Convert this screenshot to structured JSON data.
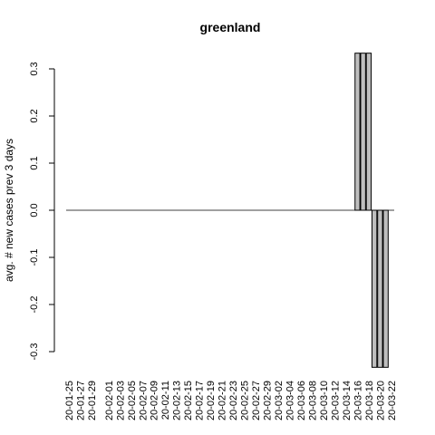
{
  "chart_data": {
    "type": "bar",
    "title": "greenland",
    "xlabel": "",
    "ylabel": "avg. # new cases prev  3  days",
    "ylim": [
      -0.3333,
      0.3333
    ],
    "yticks": [
      -0.3,
      -0.2,
      -0.1,
      0.0,
      0.1,
      0.2,
      0.3
    ],
    "ytick_labels": [
      "-0.3",
      "-0.2",
      "-0.1",
      "0.0",
      "0.1",
      "0.2",
      "0.3"
    ],
    "x_label_dates": [
      "20-01-25",
      "20-01-27",
      "20-01-29",
      "20-02-01",
      "20-02-03",
      "20-02-05",
      "20-02-07",
      "20-02-09",
      "20-02-11",
      "20-02-13",
      "20-02-15",
      "20-02-17",
      "20-02-19",
      "20-02-21",
      "20-02-23",
      "20-02-25",
      "20-02-27",
      "20-02-29",
      "20-03-02",
      "20-03-04",
      "20-03-06",
      "20-03-08",
      "20-03-10",
      "20-03-12",
      "20-03-14",
      "20-03-16",
      "20-03-18",
      "20-03-20",
      "20-03-22"
    ],
    "bars": [
      {
        "date": "20-03-16",
        "value": 0.3333
      },
      {
        "date": "20-03-17",
        "value": 0.3333
      },
      {
        "date": "20-03-18",
        "value": 0.3333
      },
      {
        "date": "20-03-19",
        "value": -0.3333
      },
      {
        "date": "20-03-20",
        "value": -0.3333
      },
      {
        "date": "20-03-21",
        "value": -0.3333
      }
    ],
    "bar_color": "#bebebe",
    "grid": false
  }
}
